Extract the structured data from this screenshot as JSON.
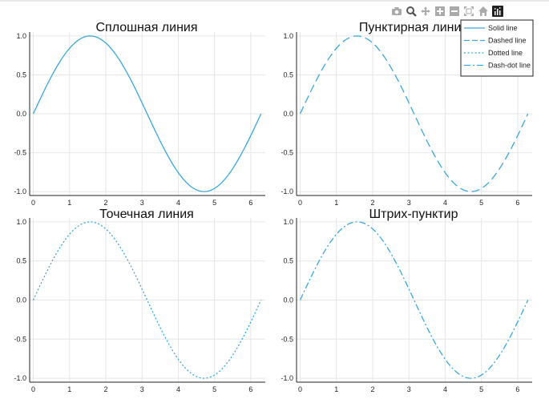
{
  "modebar": {
    "buttons": [
      {
        "name": "camera-icon"
      },
      {
        "name": "zoom-icon"
      },
      {
        "name": "pan-icon"
      },
      {
        "name": "zoom-in-icon"
      },
      {
        "name": "zoom-out-icon"
      },
      {
        "name": "autoscale-icon"
      },
      {
        "name": "home-icon"
      },
      {
        "name": "plotly-logo-icon"
      }
    ]
  },
  "colors": {
    "line": "#39a8e0",
    "grid": "#e6e6e6",
    "axis": "#222222"
  },
  "chart_data": [
    {
      "type": "line",
      "title": "Сплошная линия",
      "line_style": "solid",
      "function": "sin(x)",
      "x_range": [
        0,
        6.283
      ],
      "xlim": [
        -0.1,
        6.4
      ],
      "ylim": [
        -1.05,
        1.05
      ],
      "x_ticks": [
        "0",
        "1",
        "2",
        "3",
        "4",
        "5",
        "6"
      ],
      "y_ticks": [
        "1.0",
        "0.5",
        "0.0",
        "-0.5",
        "-1.0"
      ],
      "grid": true
    },
    {
      "type": "line",
      "title": "Пунктирная линия",
      "line_style": "dashed",
      "function": "sin(x)",
      "x_range": [
        0,
        6.283
      ],
      "xlim": [
        -0.1,
        6.4
      ],
      "ylim": [
        -1.05,
        1.05
      ],
      "x_ticks": [
        "0",
        "1",
        "2",
        "3",
        "4",
        "5",
        "6"
      ],
      "y_ticks": [
        "1.0",
        "0.5",
        "0.0",
        "-0.5",
        "-1.0"
      ],
      "grid": true
    },
    {
      "type": "line",
      "title": "Точечная линия",
      "line_style": "dotted",
      "function": "sin(x)",
      "x_range": [
        0,
        6.283
      ],
      "xlim": [
        -0.1,
        6.4
      ],
      "ylim": [
        -1.05,
        1.05
      ],
      "x_ticks": [
        "0",
        "1",
        "2",
        "3",
        "4",
        "5",
        "6"
      ],
      "y_ticks": [
        "1.0",
        "0.5",
        "0.0",
        "-0.5",
        "-1.0"
      ],
      "grid": true
    },
    {
      "type": "line",
      "title": "Штрих-пунктир",
      "line_style": "dashdot",
      "function": "sin(x)",
      "x_range": [
        0,
        6.283
      ],
      "xlim": [
        -0.1,
        6.4
      ],
      "ylim": [
        -1.05,
        1.05
      ],
      "x_ticks": [
        "0",
        "1",
        "2",
        "3",
        "4",
        "5",
        "6"
      ],
      "y_ticks": [
        "1.0",
        "0.5",
        "0.0",
        "-0.5",
        "-1.0"
      ],
      "grid": true
    }
  ],
  "legend": {
    "position": "top-right",
    "entries": [
      {
        "label": "Solid line",
        "style": "solid"
      },
      {
        "label": "Dashed line",
        "style": "dashed"
      },
      {
        "label": "Dotted line",
        "style": "dotted"
      },
      {
        "label": "Dash-dot line",
        "style": "dashdot"
      }
    ]
  }
}
